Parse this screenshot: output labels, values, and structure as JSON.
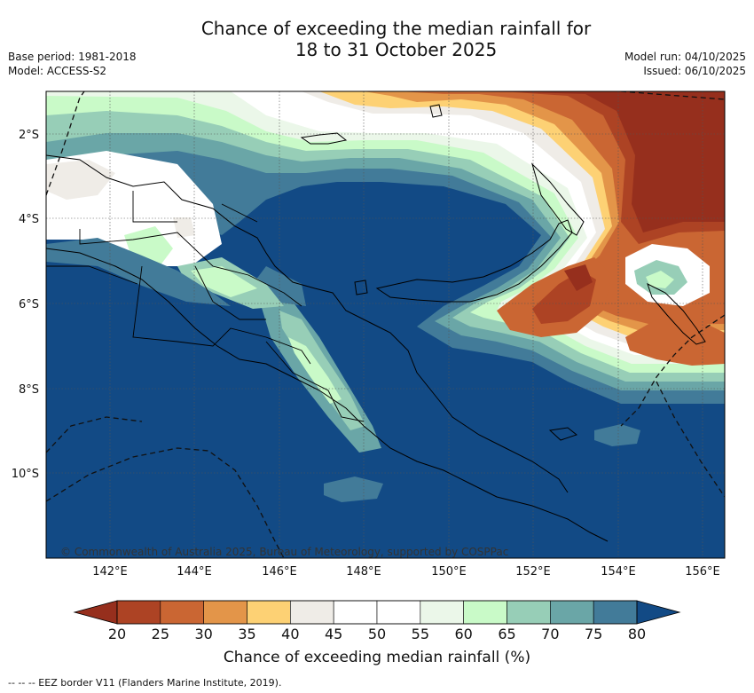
{
  "title": {
    "line1": "Chance of exceeding the median rainfall for",
    "line2": "18 to 31 October 2025"
  },
  "meta_left": {
    "base_period": "Base period: 1981-2018",
    "model": "Model: ACCESS-S2"
  },
  "meta_right": {
    "model_run": "Model run: 04/10/2025",
    "issued": "Issued: 06/10/2025"
  },
  "map": {
    "lon_ticks": [
      "142°E",
      "144°E",
      "146°E",
      "148°E",
      "150°E",
      "152°E",
      "154°E",
      "156°E"
    ],
    "lat_ticks": [
      "2°S",
      "4°S",
      "6°S",
      "8°S",
      "10°S"
    ],
    "attribution": "© Commonwealth of Australia 2025, Bureau of Meteorology, supported by COSPPac",
    "ocean_base_color": "#124a85"
  },
  "colorbar": {
    "title": "Chance of exceeding median rainfall (%)",
    "ticks": [
      "20",
      "25",
      "30",
      "35",
      "40",
      "45",
      "50",
      "55",
      "60",
      "65",
      "70",
      "75",
      "80"
    ],
    "under_color": "#962f1d",
    "over_color": "#124a85",
    "colors": [
      "#ad4324",
      "#ca6633",
      "#e39549",
      "#fdd174",
      "#efece7",
      "#ffffff",
      "#ffffff",
      "#ebf7e9",
      "#c9fac8",
      "#97ceb7",
      "#6aa6a7",
      "#427b99"
    ]
  },
  "footer": {
    "legend": "-- -- -- EEZ border V11 (Flanders Marine Institute, 2019)."
  }
}
